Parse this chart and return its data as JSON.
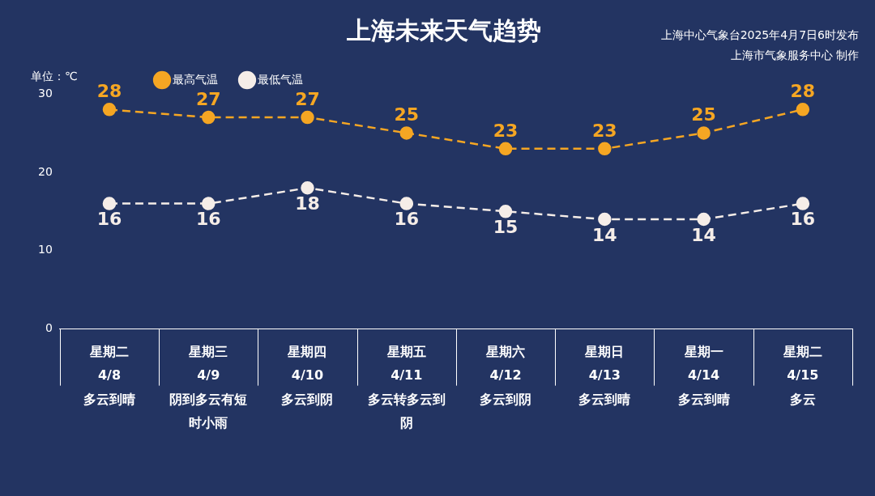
{
  "chart_data": {
    "type": "line",
    "title": "上海未来天气趋势",
    "ylabel": "单位：℃",
    "annotations": [
      "上海中心气象台2025年4月7日6时发布",
      "上海市气象服务中心 制作"
    ],
    "categories": [
      "星期二\n4/8\n多云到晴",
      "星期三\n4/9\n阴到多云有短时小雨",
      "星期四\n4/10\n多云到阴",
      "星期五\n4/11\n多云转多云到阴",
      "星期六\n4/12\n多云到阴",
      "星期日\n4/13\n多云到晴",
      "星期一\n4/14\n多云到晴",
      "星期二\n4/15\n多云"
    ],
    "series": [
      {
        "name": "最高气温",
        "color": "#f5a623",
        "values": [
          28,
          27,
          27,
          25,
          23,
          23,
          25,
          28
        ]
      },
      {
        "name": "最低气温",
        "color": "#f5ede8",
        "values": [
          16,
          16,
          18,
          16,
          15,
          14,
          14,
          16
        ]
      }
    ],
    "ylim": [
      0,
      30
    ],
    "yticks": [
      0,
      10,
      20,
      30
    ],
    "grid": false,
    "legend": "top left",
    "marker": "circle",
    "line_style": "dashed",
    "data_labels": true
  }
}
